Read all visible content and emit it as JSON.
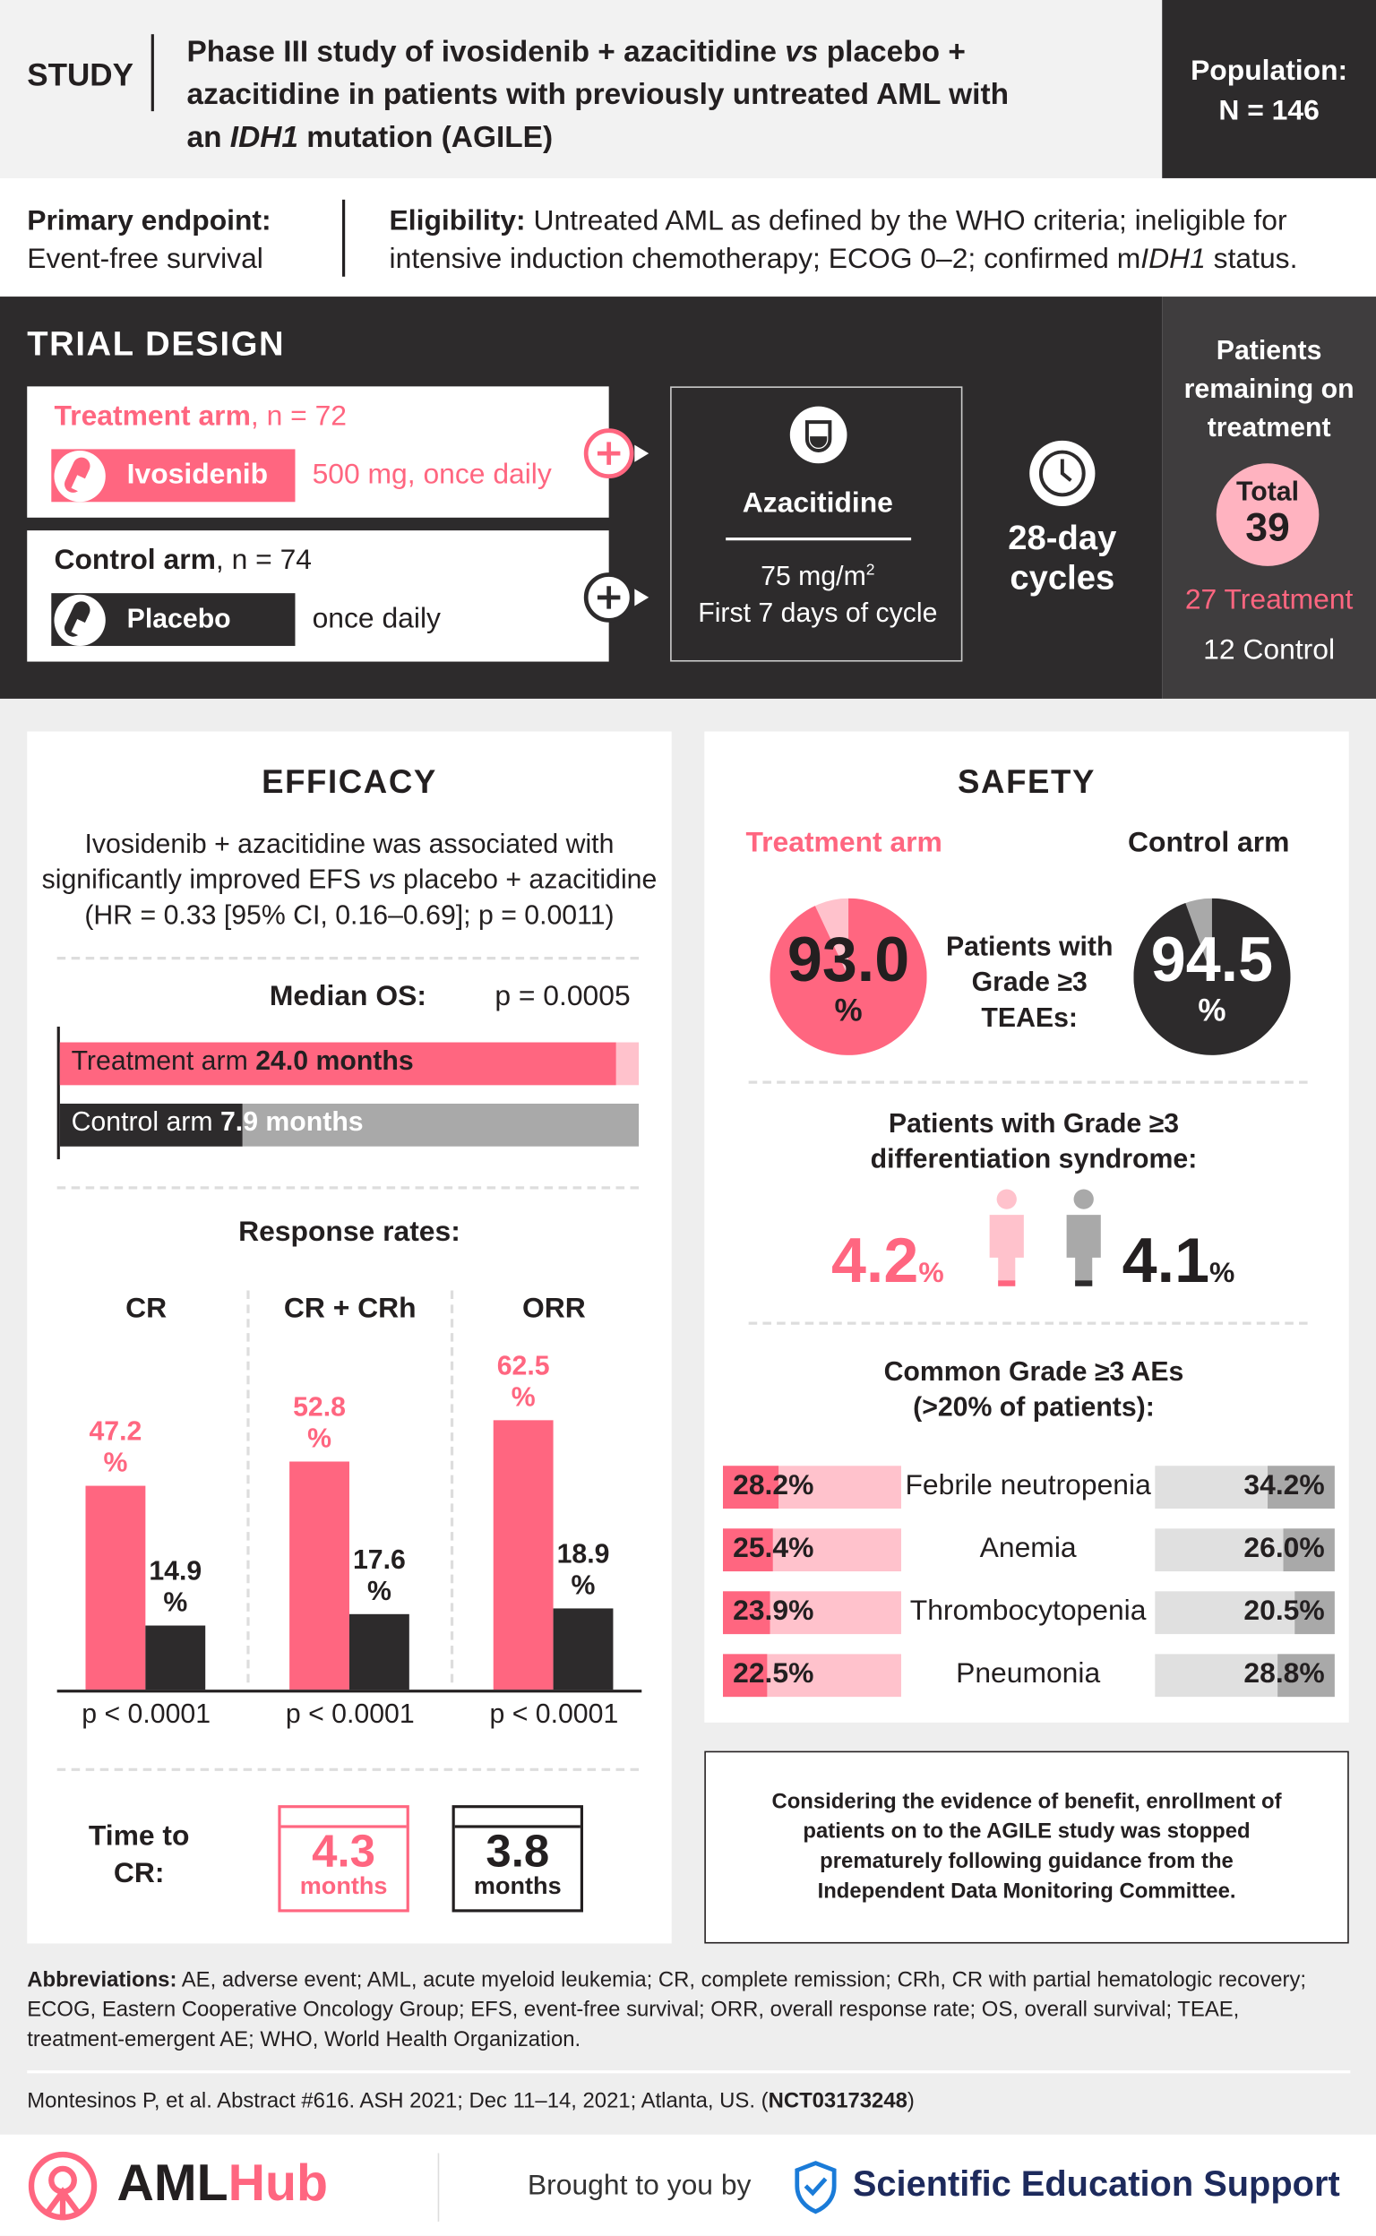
{
  "colors": {
    "accent": "#ff6680",
    "light_accent": "#ffc2cc",
    "dark": "#2d2b2c",
    "gray": "#a9a9a9",
    "light_gray": "#e0e0e0"
  },
  "header": {
    "label": "STUDY",
    "title_pre": "Phase III study of ivosidenib + azacitidine ",
    "title_vs": "vs",
    "title_mid": " placebo + azacitidine in patients with previously untreated AML with an ",
    "title_gene": "IDH1",
    "title_post": " mutation (AGILE)",
    "population_label": "Population:",
    "population_value": "N = 146"
  },
  "endpoint": {
    "label": "Primary endpoint:",
    "value": "Event-free survival"
  },
  "eligibility": {
    "label": "Eligibility:",
    "value": " Untreated AML as defined by the WHO criteria; ineligible for intensive induction chemotherapy; ECOG 0–2; confirmed m",
    "gene": "IDH1",
    "post": " status."
  },
  "trial_design": {
    "title": "TRIAL DESIGN",
    "treatment_arm": {
      "label": "Treatment arm",
      "n": ", n = 72",
      "drug": "Ivosidenib",
      "dose": "500 mg, once daily"
    },
    "control_arm": {
      "label": "Control arm",
      "n": ", n = 74",
      "drug": "Placebo",
      "dose": "once daily"
    },
    "azacitidine": {
      "name": "Azacitidine",
      "dose": "75 mg/m",
      "dose_sup": "2",
      "schedule": "First 7 days of cycle"
    },
    "cycles": "28-day cycles",
    "remaining": {
      "title": "Patients remaining on treatment",
      "total_label": "Total",
      "total": "39",
      "treatment": "27 Treatment",
      "control": "12 Control"
    }
  },
  "efficacy": {
    "title": "EFFICACY",
    "summary_pre": "Ivosidenib + azacitidine was associated with significantly improved EFS ",
    "summary_vs": "vs",
    "summary_post": " placebo + azacitidine (HR = 0.33 [95% CI, 0.16–0.69]; p = 0.0011)",
    "os": {
      "label": "Median OS:",
      "p": "p = 0.0005",
      "treatment_label": "Treatment arm ",
      "treatment_value": "24.0 months",
      "control_label": "Control arm ",
      "control_value": "7.9 months",
      "treatment_months": 24.0,
      "control_months": 7.9
    },
    "response_title": "Response rates:",
    "response": [
      {
        "name": "CR",
        "treatment": 47.2,
        "control": 14.9,
        "treatment_label": "47.2\n%",
        "control_label": "14.9\n%",
        "p": "p < 0.0001"
      },
      {
        "name": "CR + CRh",
        "treatment": 52.8,
        "control": 17.6,
        "treatment_label": "52.8\n%",
        "control_label": "17.6\n%",
        "p": "p < 0.0001"
      },
      {
        "name": "ORR",
        "treatment": 62.5,
        "control": 18.9,
        "treatment_label": "62.5\n%",
        "control_label": "18.9\n%",
        "p": "p < 0.0001"
      }
    ],
    "time_to_cr": {
      "label": "Time to CR:",
      "treatment_value": "4.3",
      "control_value": "3.8",
      "unit": "months"
    }
  },
  "safety": {
    "title": "SAFETY",
    "treatment_arm": "Treatment arm",
    "control_arm": "Control arm",
    "teae": {
      "label": "Patients with Grade ≥3 TEAEs:",
      "treatment": "93.0",
      "control": "94.5",
      "unit": "%",
      "treatment_pct": 93.0,
      "control_pct": 94.5
    },
    "ds": {
      "label": "Patients with Grade ≥3 differentiation syndrome:",
      "treatment": "4.2",
      "control": "4.1",
      "unit": "%"
    },
    "ae_title": "Common Grade ≥3 AEs (>20% of patients):",
    "ae": [
      {
        "name": "Febrile neutropenia",
        "treatment": "28.2%",
        "control": "34.2%",
        "t": 28.2,
        "c": 34.2
      },
      {
        "name": "Anemia",
        "treatment": "25.4%",
        "control": "26.0%",
        "t": 25.4,
        "c": 26.0
      },
      {
        "name": "Thrombocytopenia",
        "treatment": "23.9%",
        "control": "20.5%",
        "t": 23.9,
        "c": 20.5
      },
      {
        "name": "Pneumonia",
        "treatment": "22.5%",
        "control": "28.8%",
        "t": 22.5,
        "c": 28.8
      }
    ]
  },
  "notice": "Considering the evidence of benefit, enrollment of patients on to the AGILE study was stopped prematurely following guidance from the Independent Data Monitoring Committee.",
  "abbreviations": {
    "label": "Abbreviations:",
    "text": " AE, adverse event; AML, acute myeloid leukemia; CR, complete remission; CRh, CR with partial hematologic recovery; ECOG, Eastern Cooperative Oncology Group; EFS, event-free survival; ORR, overall response rate; OS, overall survival; TEAE, treatment-emergent AE; WHO, World Health Organization."
  },
  "citation": {
    "text": "Montesinos P, et al. Abstract #616. ASH 2021; Dec 11–14, 2021; Atlanta, US. (",
    "nct": "NCT03173248",
    "close": ")"
  },
  "footer": {
    "logo_aml": "AML",
    "logo_hub": "Hub",
    "brought": "Brought to you by",
    "sponsor": "Scientific Education Support"
  }
}
